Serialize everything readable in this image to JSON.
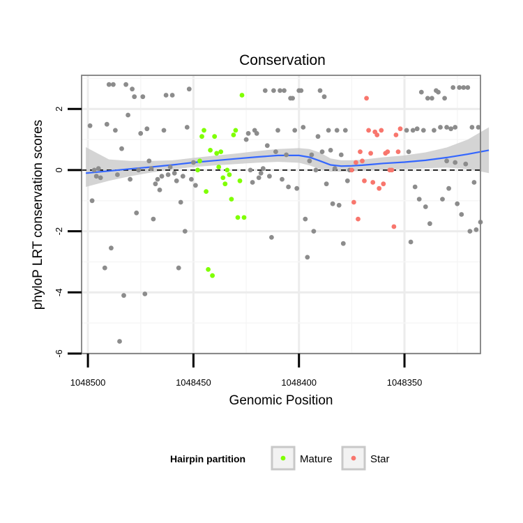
{
  "chart_data": {
    "type": "scatter",
    "title": "Conservation",
    "xlabel": "Genomic Position",
    "ylabel": "phyloP LRT conservation scores",
    "x_reversed": true,
    "xlim": [
      1048503,
      1048314
    ],
    "ylim": [
      -6,
      3.1
    ],
    "x_ticks": [
      1048500,
      1048450,
      1048400,
      1048350
    ],
    "x_tick_labels": [
      "1048500",
      "1048450",
      "1048400",
      "1048350"
    ],
    "y_ticks": [
      -6,
      -4,
      -2,
      0,
      2
    ],
    "y_tick_labels": [
      "-6",
      "-4",
      "-2",
      "0",
      "2"
    ],
    "grid": true,
    "reference_line": {
      "y": 0,
      "style": "dashed"
    },
    "legend": {
      "title": "Hairpin partition",
      "position": "bottom",
      "entries": [
        {
          "label": "Mature",
          "color": "#7fff00"
        },
        {
          "label": "Star",
          "color": "#f8766d"
        }
      ]
    },
    "colors": {
      "other": "#8c8c8c",
      "mature": "#7fff00",
      "star": "#f8766d",
      "smooth": "#3366ff",
      "ribbon": "#cccccc"
    },
    "series": [
      {
        "group": "other",
        "points": [
          [
            1048499,
            1.45
          ],
          [
            1048498,
            -1.0
          ],
          [
            1048497,
            0.0
          ],
          [
            1048496,
            -0.2
          ],
          [
            1048495,
            0.05
          ],
          [
            1048494,
            -0.25
          ],
          [
            1048492,
            -3.2
          ],
          [
            1048491,
            1.5
          ],
          [
            1048490,
            2.8
          ],
          [
            1048489,
            -2.55
          ],
          [
            1048488,
            2.8
          ],
          [
            1048487,
            1.3
          ],
          [
            1048486,
            -0.15
          ],
          [
            1048485,
            -5.6
          ],
          [
            1048484,
            0.7
          ],
          [
            1048483,
            -4.1
          ],
          [
            1048482,
            2.8
          ],
          [
            1048481,
            1.8
          ],
          [
            1048480,
            -0.3
          ],
          [
            1048479,
            2.65
          ],
          [
            1048478,
            2.4
          ],
          [
            1048477,
            -1.4
          ],
          [
            1048476,
            0.0
          ],
          [
            1048475,
            1.2
          ],
          [
            1048474,
            2.4
          ],
          [
            1048473,
            -4.05
          ],
          [
            1048472,
            1.35
          ],
          [
            1048471,
            0.3
          ],
          [
            1048470,
            0.05
          ],
          [
            1048469,
            -1.6
          ],
          [
            1048468,
            -0.45
          ],
          [
            1048467,
            -0.3
          ],
          [
            1048466,
            -0.65
          ],
          [
            1048465,
            -0.2
          ],
          [
            1048464,
            1.3
          ],
          [
            1048463,
            2.45
          ],
          [
            1048462,
            -0.15
          ],
          [
            1048461,
            0.1
          ],
          [
            1048460,
            2.45
          ],
          [
            1048459,
            -0.1
          ],
          [
            1048458,
            -0.35
          ],
          [
            1048457,
            -3.2
          ],
          [
            1048456,
            -1.05
          ],
          [
            1048455,
            -0.2
          ],
          [
            1048454,
            -2.0
          ],
          [
            1048453,
            1.4
          ],
          [
            1048452,
            2.65
          ],
          [
            1048451,
            -0.3
          ],
          [
            1048450,
            0.25
          ],
          [
            1048449,
            -0.5
          ],
          [
            1048425,
            1.0
          ],
          [
            1048424,
            1.2
          ],
          [
            1048423,
            0.0
          ],
          [
            1048422,
            -0.4
          ],
          [
            1048421,
            1.3
          ],
          [
            1048420,
            1.2
          ],
          [
            1048419,
            -0.25
          ],
          [
            1048418,
            -0.1
          ],
          [
            1048417,
            0.05
          ],
          [
            1048416,
            2.6
          ],
          [
            1048415,
            0.8
          ],
          [
            1048414,
            -0.2
          ],
          [
            1048413,
            -2.2
          ],
          [
            1048412,
            2.6
          ],
          [
            1048411,
            0.6
          ],
          [
            1048410,
            1.3
          ],
          [
            1048409,
            2.6
          ],
          [
            1048408,
            -0.3
          ],
          [
            1048407,
            2.6
          ],
          [
            1048406,
            0.5
          ],
          [
            1048405,
            -0.55
          ],
          [
            1048404,
            2.35
          ],
          [
            1048403,
            2.35
          ],
          [
            1048402,
            1.3
          ],
          [
            1048401,
            -0.6
          ],
          [
            1048400,
            2.6
          ],
          [
            1048399,
            2.6
          ],
          [
            1048398,
            1.4
          ],
          [
            1048397,
            -1.6
          ],
          [
            1048396,
            -2.85
          ],
          [
            1048395,
            0.3
          ],
          [
            1048394,
            0.5
          ],
          [
            1048393,
            -2.0
          ],
          [
            1048392,
            0.0
          ],
          [
            1048391,
            1.1
          ],
          [
            1048390,
            2.6
          ],
          [
            1048389,
            0.6
          ],
          [
            1048388,
            2.4
          ],
          [
            1048387,
            -0.45
          ],
          [
            1048386,
            1.3
          ],
          [
            1048385,
            0.65
          ],
          [
            1048384,
            -1.1
          ],
          [
            1048383,
            0.05
          ],
          [
            1048382,
            1.3
          ],
          [
            1048381,
            -1.15
          ],
          [
            1048380,
            0.5
          ],
          [
            1048379,
            -2.4
          ],
          [
            1048378,
            1.3
          ],
          [
            1048377,
            -0.35
          ],
          [
            1048376,
            0.0
          ],
          [
            1048349,
            1.3
          ],
          [
            1048348,
            0.6
          ],
          [
            1048347,
            -2.35
          ],
          [
            1048346,
            1.3
          ],
          [
            1048345,
            -0.55
          ],
          [
            1048344,
            1.35
          ],
          [
            1048343,
            -0.95
          ],
          [
            1048342,
            2.55
          ],
          [
            1048341,
            1.3
          ],
          [
            1048340,
            -1.2
          ],
          [
            1048339,
            2.35
          ],
          [
            1048338,
            -1.75
          ],
          [
            1048337,
            2.35
          ],
          [
            1048336,
            1.3
          ],
          [
            1048335,
            2.6
          ],
          [
            1048334,
            2.55
          ],
          [
            1048333,
            1.4
          ],
          [
            1048332,
            -0.95
          ],
          [
            1048331,
            2.35
          ],
          [
            1048330,
            1.4
          ],
          [
            1048329,
            -0.6
          ],
          [
            1048328,
            1.35
          ],
          [
            1048327,
            2.7
          ],
          [
            1048326,
            1.4
          ],
          [
            1048325,
            -1.1
          ],
          [
            1048324,
            2.7
          ],
          [
            1048323,
            -1.45
          ],
          [
            1048322,
            2.7
          ],
          [
            1048321,
            0.2
          ],
          [
            1048320,
            2.7
          ],
          [
            1048319,
            -2.0
          ],
          [
            1048318,
            1.4
          ],
          [
            1048317,
            -0.4
          ],
          [
            1048316,
            -1.95
          ],
          [
            1048315,
            1.4
          ],
          [
            1048314,
            -1.7
          ],
          [
            1048330,
            0.3
          ],
          [
            1048326,
            0.25
          ]
        ]
      },
      {
        "group": "Mature",
        "points": [
          [
            1048448,
            0.0
          ],
          [
            1048447,
            0.3
          ],
          [
            1048446,
            1.1
          ],
          [
            1048445,
            1.3
          ],
          [
            1048444,
            -0.7
          ],
          [
            1048443,
            -3.25
          ],
          [
            1048442,
            0.65
          ],
          [
            1048441,
            -3.45
          ],
          [
            1048440,
            1.1
          ],
          [
            1048439,
            0.55
          ],
          [
            1048438,
            0.1
          ],
          [
            1048437,
            0.6
          ],
          [
            1048436,
            -0.25
          ],
          [
            1048435,
            -0.45
          ],
          [
            1048434,
            0.0
          ],
          [
            1048433,
            -0.15
          ],
          [
            1048432,
            -0.95
          ],
          [
            1048431,
            1.15
          ],
          [
            1048430,
            1.3
          ],
          [
            1048429,
            -1.55
          ],
          [
            1048428,
            -0.35
          ],
          [
            1048427,
            2.45
          ],
          [
            1048426,
            -1.55
          ]
        ]
      },
      {
        "group": "Star",
        "points": [
          [
            1048375,
            0.0
          ],
          [
            1048374,
            -1.05
          ],
          [
            1048373,
            0.25
          ],
          [
            1048372,
            -1.6
          ],
          [
            1048371,
            0.6
          ],
          [
            1048370,
            0.3
          ],
          [
            1048369,
            -0.35
          ],
          [
            1048368,
            2.35
          ],
          [
            1048367,
            1.3
          ],
          [
            1048366,
            0.55
          ],
          [
            1048365,
            -0.4
          ],
          [
            1048364,
            1.25
          ],
          [
            1048363,
            1.15
          ],
          [
            1048362,
            -0.6
          ],
          [
            1048361,
            1.3
          ],
          [
            1048360,
            -0.45
          ],
          [
            1048359,
            0.55
          ],
          [
            1048358,
            0.6
          ],
          [
            1048357,
            0.0
          ],
          [
            1048356,
            0.0
          ],
          [
            1048355,
            -1.85
          ],
          [
            1048354,
            1.15
          ],
          [
            1048353,
            0.6
          ],
          [
            1048352,
            1.35
          ]
        ]
      }
    ],
    "smooth": {
      "x": [
        1048501,
        1048490,
        1048480,
        1048470,
        1048460,
        1048450,
        1048440,
        1048430,
        1048420,
        1048410,
        1048400,
        1048395,
        1048390,
        1048385,
        1048380,
        1048375,
        1048370,
        1048365,
        1048360,
        1048350,
        1048340,
        1048330,
        1048320,
        1048310
      ],
      "y": [
        -0.1,
        -0.03,
        0.04,
        0.1,
        0.17,
        0.25,
        0.31,
        0.37,
        0.43,
        0.48,
        0.48,
        0.42,
        0.3,
        0.17,
        0.13,
        0.14,
        0.16,
        0.19,
        0.22,
        0.26,
        0.32,
        0.41,
        0.52,
        0.65
      ],
      "lower": [
        -0.55,
        -0.35,
        -0.2,
        -0.08,
        0.02,
        0.1,
        0.15,
        0.2,
        0.24,
        0.27,
        0.24,
        0.15,
        0.03,
        -0.05,
        -0.05,
        -0.04,
        -0.02,
        0.0,
        0.02,
        0.04,
        0.06,
        0.08,
        0.04,
        -0.1
      ],
      "upper": [
        0.75,
        0.35,
        0.3,
        0.3,
        0.32,
        0.4,
        0.47,
        0.54,
        0.62,
        0.69,
        0.72,
        0.69,
        0.57,
        0.38,
        0.32,
        0.32,
        0.34,
        0.38,
        0.42,
        0.48,
        0.58,
        0.74,
        1.0,
        1.4
      ]
    }
  }
}
